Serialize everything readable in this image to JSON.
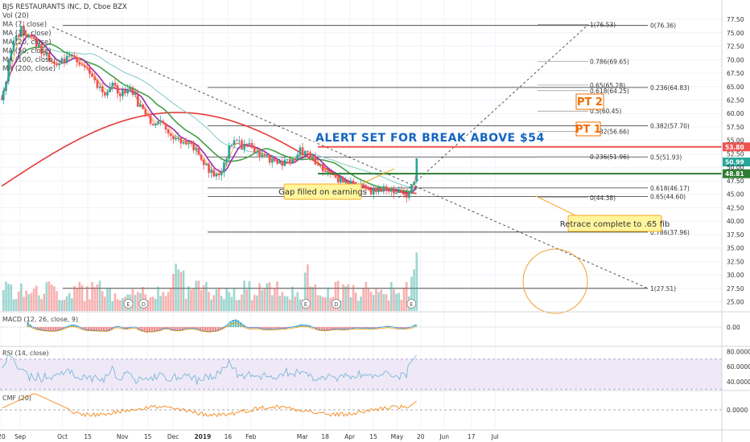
{
  "header": {
    "title": "BJS RESTAURANTS INC, D, Cboe BZX",
    "indicators": [
      "Vol (20)",
      "MA (7, close)",
      "MA (12, close)",
      "MA (20, close)",
      "MA (50, close)",
      "MA (100, close)",
      "MA (200, close)"
    ]
  },
  "annotations": {
    "alert": "ALERT SET FOR BREAK ABOVE $54",
    "pt2": "PT 2",
    "pt1": "PT 1",
    "gap": "Gap filled on earnings",
    "retrace": "Retrace complete to .65 fib"
  },
  "colors": {
    "up": "#26a69a",
    "down": "#ef5350",
    "ma7": "#ef5350",
    "ma12": "#ff9800",
    "ma20": "#9c27b0",
    "ma50": "#43a047",
    "ma100": "#80cbc4",
    "ma200": "#e53935",
    "alert_text": "#1565c0",
    "pt": "#ef6c00",
    "callout_fill": "#fff59d",
    "callout_stroke": "#f9a825"
  },
  "chart_data": [
    {
      "type": "candlestick",
      "pane": "price",
      "y_ticks": [
        "77.50",
        "75.00",
        "72.50",
        "70.00",
        "67.50",
        "65.00",
        "62.50",
        "60.00",
        "57.50",
        "55.00",
        "52.50",
        "50.00",
        "47.50",
        "45.00",
        "42.50",
        "40.00",
        "37.50",
        "35.00",
        "32.50",
        "30.00",
        "27.50",
        "25.00"
      ],
      "x_ticks": [
        "20",
        "Sep",
        "Oct",
        "15",
        "Nov",
        "15",
        "Dec",
        "2019",
        "16",
        "Feb",
        "Mar",
        "18",
        "Apr",
        "15",
        "May",
        "20",
        "Jun",
        "17",
        "Jul"
      ],
      "ylim": [
        23.3,
        79.0
      ],
      "price_tags": [
        {
          "label": "53.80",
          "value": 53.8,
          "color": "#ef5350"
        },
        {
          "label": "50.99",
          "value": 50.99,
          "color": "#26a69a"
        },
        {
          "label": "48.81",
          "value": 48.81,
          "color": "#2e7d32"
        }
      ],
      "horizontal_lines": [
        {
          "value": 53.8,
          "color": "#ef5350"
        },
        {
          "value": 48.81,
          "color": "#2e7d32"
        }
      ],
      "fib_levels_major": [
        {
          "label": "0(76.36)",
          "value": 76.36
        },
        {
          "label": "0.236(64.83)",
          "value": 64.83
        },
        {
          "label": "0.382(57.70)",
          "value": 57.7
        },
        {
          "label": "0.5(51.93)",
          "value": 51.93
        },
        {
          "label": "0.618(46.17)",
          "value": 46.17
        },
        {
          "label": "0.65(44.60)",
          "value": 44.6
        },
        {
          "label": "0.786(37.96)",
          "value": 37.96
        },
        {
          "label": "1(27.51)",
          "value": 27.51
        }
      ],
      "fib_levels_projection": [
        {
          "label": "1(76.53)",
          "value": 76.53
        },
        {
          "label": "0.786(69.65)",
          "value": 69.65
        },
        {
          "label": "0.65(65.28)",
          "value": 65.28
        },
        {
          "label": "0.618(64.25)",
          "value": 64.25
        },
        {
          "label": "0.5(60.45)",
          "value": 60.45
        },
        {
          "label": "0.382(56.66)",
          "value": 56.66
        },
        {
          "label": "0.236(51.96)",
          "value": 51.96
        },
        {
          "label": "0(44.38)",
          "value": 44.38
        }
      ],
      "close_path": [
        [
          0,
          62.5
        ],
        [
          8,
          70
        ],
        [
          14,
          73.5
        ],
        [
          22,
          75.5
        ],
        [
          30,
          74
        ],
        [
          40,
          73
        ],
        [
          50,
          71
        ],
        [
          60,
          69
        ],
        [
          70,
          69.5
        ],
        [
          80,
          71
        ],
        [
          90,
          70
        ],
        [
          100,
          68
        ],
        [
          110,
          66
        ],
        [
          120,
          63.5
        ],
        [
          130,
          66
        ],
        [
          140,
          63
        ],
        [
          150,
          65.5
        ],
        [
          160,
          62
        ],
        [
          170,
          59.5
        ],
        [
          180,
          58
        ],
        [
          188,
          58.5
        ],
        [
          196,
          56.5
        ],
        [
          204,
          55.5
        ],
        [
          212,
          54.5
        ],
        [
          220,
          55.2
        ],
        [
          230,
          52.5
        ],
        [
          240,
          50.5
        ],
        [
          248,
          49
        ],
        [
          252,
          48.5
        ],
        [
          260,
          49.5
        ],
        [
          268,
          54
        ],
        [
          276,
          55
        ],
        [
          284,
          53.5
        ],
        [
          292,
          54
        ],
        [
          300,
          53
        ],
        [
          310,
          52.2
        ],
        [
          320,
          51.2
        ],
        [
          330,
          50.5
        ],
        [
          340,
          51
        ],
        [
          352,
          53
        ],
        [
          362,
          52
        ],
        [
          372,
          50.5
        ],
        [
          382,
          49
        ],
        [
          392,
          48.5
        ],
        [
          402,
          47.2
        ],
        [
          412,
          47
        ],
        [
          422,
          46.2
        ],
        [
          432,
          45.6
        ],
        [
          442,
          45.4
        ],
        [
          452,
          46.5
        ],
        [
          462,
          45.7
        ],
        [
          472,
          45.2
        ],
        [
          478,
          44.8
        ],
        [
          482,
          46
        ],
        [
          486,
          47
        ],
        [
          490,
          51
        ]
      ],
      "eps_markers": [
        {
          "label": "E",
          "x_index": 150
        },
        {
          "label": "D",
          "x_index": 168
        },
        {
          "label": "E",
          "x_index": 360
        },
        {
          "label": "D",
          "x_index": 396
        },
        {
          "label": "E",
          "x_index": 485
        }
      ]
    },
    {
      "type": "bar",
      "pane": "volume",
      "series_name": "Vol (20)"
    },
    {
      "type": "histogram",
      "pane": "macd",
      "title": "MACD (12, 26, close, 9)",
      "y_ticks": [
        "0.00"
      ]
    },
    {
      "type": "line",
      "pane": "rsi",
      "title": "RSI (14, close)",
      "y_ticks": [
        "80.0000",
        "60.0000",
        "40.0000"
      ],
      "ylim": [
        28,
        86
      ],
      "band": [
        30,
        70
      ]
    },
    {
      "type": "line",
      "pane": "cmf",
      "title": "CMF (20)",
      "y_ticks": [
        "0.0000"
      ],
      "ylim": [
        -0.55,
        0.55
      ]
    }
  ]
}
